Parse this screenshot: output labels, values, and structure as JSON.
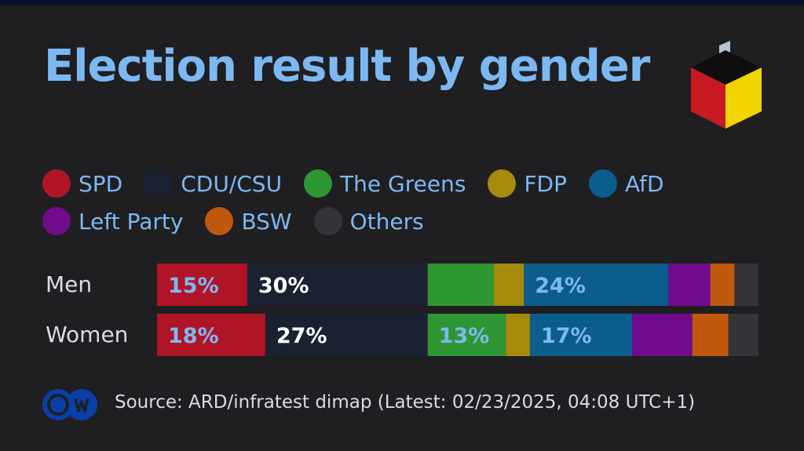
{
  "title": "Election result by gender",
  "source": "Source: ARD/infratest dimap (Latest: 02/23/2025, 04:08 UTC+1)",
  "logo": {
    "brand": "DW",
    "icon": "ballot-box-icon"
  },
  "legend": [
    {
      "label": "SPD",
      "color": "#b01427"
    },
    {
      "label": "CDU/CSU",
      "color": "#1a2131"
    },
    {
      "label": "The Greens",
      "color": "#2e9632"
    },
    {
      "label": "FDP",
      "color": "#a68a0c"
    },
    {
      "label": "AfD",
      "color": "#0b5d8c"
    },
    {
      "label": "Left Party",
      "color": "#6f0b8c"
    },
    {
      "label": "BSW",
      "color": "#c0580e"
    },
    {
      "label": "Others",
      "color": "#333437"
    }
  ],
  "chart_data": {
    "type": "bar",
    "orientation": "horizontal",
    "stacked": true,
    "categories": [
      "Men",
      "Women"
    ],
    "series": [
      {
        "name": "SPD",
        "values": [
          15,
          18
        ],
        "labels": [
          "15%",
          "18%"
        ],
        "label_color": "#7cb8f2"
      },
      {
        "name": "CDU/CSU",
        "values": [
          30,
          27
        ],
        "labels": [
          "30%",
          "27%"
        ],
        "label_color": "#ffffff"
      },
      {
        "name": "The Greens",
        "values": [
          11,
          13
        ],
        "labels": [
          "",
          "13%"
        ],
        "label_color": "#7cb8f2"
      },
      {
        "name": "FDP",
        "values": [
          5,
          4
        ],
        "labels": [
          "",
          ""
        ],
        "label_color": "#7cb8f2"
      },
      {
        "name": "AfD",
        "values": [
          24,
          17
        ],
        "labels": [
          "24%",
          "17%"
        ],
        "label_color": "#7cb8f2"
      },
      {
        "name": "Left Party",
        "values": [
          7,
          10
        ],
        "labels": [
          "",
          ""
        ],
        "label_color": "#7cb8f2"
      },
      {
        "name": "BSW",
        "values": [
          4,
          6
        ],
        "labels": [
          "",
          ""
        ],
        "label_color": "#7cb8f2"
      },
      {
        "name": "Others",
        "values": [
          4,
          5
        ],
        "labels": [
          "",
          ""
        ],
        "label_color": "#7cb8f2"
      }
    ],
    "xlim": [
      0,
      100
    ],
    "legend_position": "top"
  }
}
